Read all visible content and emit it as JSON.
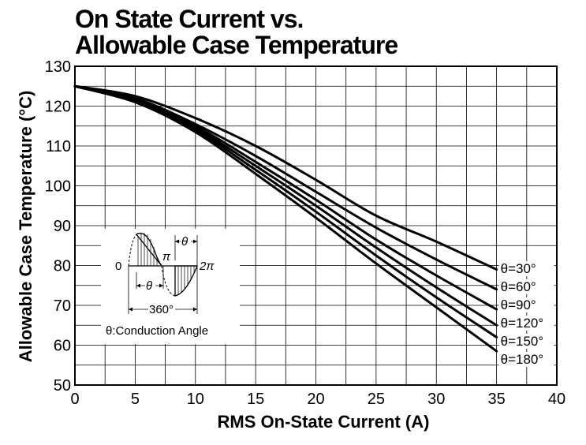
{
  "chart_data": {
    "type": "line",
    "title": [
      "On State Current vs.",
      "Allowable Case Temperature"
    ],
    "xlabel": "RMS On-State Current (A)",
    "ylabel": "Allowable Case Temperature (°C)",
    "xlim": [
      0,
      40
    ],
    "ylim": [
      50,
      130
    ],
    "xticks": [
      0,
      5,
      10,
      15,
      20,
      25,
      30,
      35,
      40
    ],
    "yticks": [
      50,
      60,
      70,
      80,
      90,
      100,
      110,
      120,
      130
    ],
    "grid": true,
    "x": [
      0,
      5,
      10,
      15,
      20,
      25,
      30,
      35
    ],
    "series": [
      {
        "name": "θ=30°",
        "values": [
          125,
          122.5,
          117,
          110,
          101.5,
          92.5,
          86,
          79
        ]
      },
      {
        "name": "θ=60°",
        "values": [
          125,
          122,
          115.5,
          107.5,
          98.5,
          89.5,
          81.5,
          74
        ]
      },
      {
        "name": "θ=90°",
        "values": [
          125,
          121.5,
          115,
          106,
          96.5,
          86.5,
          77.5,
          69
        ]
      },
      {
        "name": "θ=120°",
        "values": [
          125,
          121.5,
          114.5,
          105,
          95,
          84.5,
          74.5,
          65
        ]
      },
      {
        "name": "θ=150°",
        "values": [
          125,
          121,
          114,
          104,
          93.5,
          82.5,
          72,
          62
        ]
      },
      {
        "name": "θ=180°",
        "values": [
          125,
          121,
          113.5,
          103,
          92,
          80.5,
          69.5,
          58.5
        ]
      }
    ],
    "inset": {
      "labels": {
        "zero": "0",
        "pi": "π",
        "two_pi": "2π",
        "theta": "θ",
        "theta_bottom": "θ",
        "period": "360°"
      },
      "caption": "θ:Conduction Angle"
    }
  }
}
